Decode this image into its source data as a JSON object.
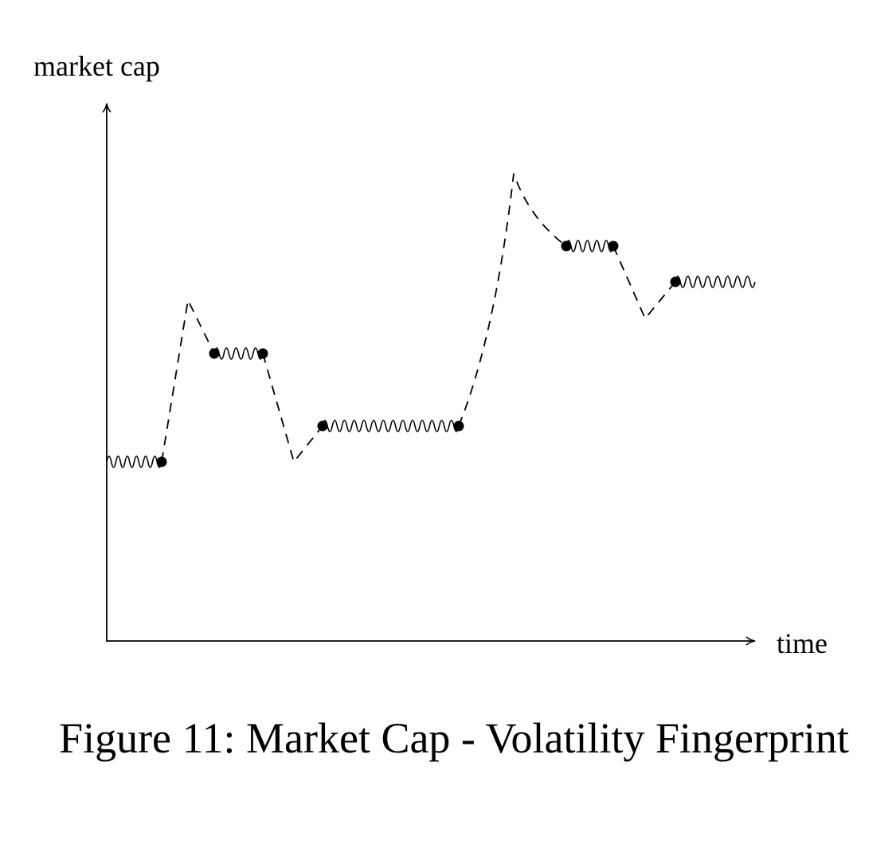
{
  "axis_labels": {
    "y": "market cap",
    "x": "time"
  },
  "caption": "Figure 11: Market Cap - Volatility Fingerprint"
}
